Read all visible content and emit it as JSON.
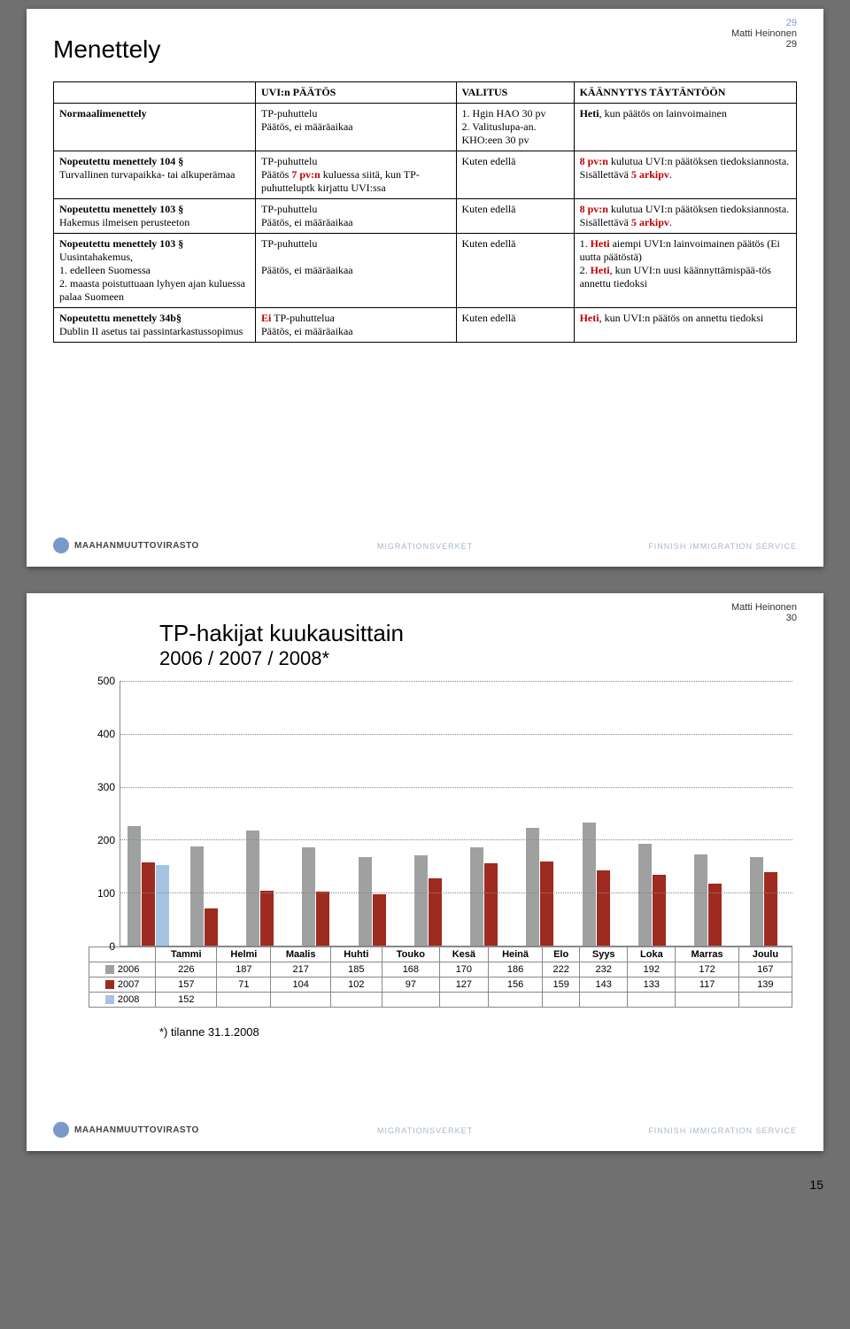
{
  "slide1": {
    "pageNumber": "29",
    "author": "Matti Heinonen",
    "authorPage": "29",
    "title": "Menettely",
    "table": {
      "headers": [
        "",
        "UVI:n PÄÄTÖS",
        "VALITUS",
        "KÄÄNNYTYS TÄYTÄNTÖÖN"
      ],
      "rows": [
        {
          "c0_html": "<span class='bold'>Normaalimenettely</span>",
          "c1_html": "TP-puhuttelu<br>Päätös, ei määräaikaa",
          "c2_html": "1. Hgin HAO 30 pv<br>2. Valituslupa-an. KHO:een 30 pv",
          "c3_html": "<span class='bold'>Heti</span>, kun päätös on lainvoimainen"
        },
        {
          "c0_html": "<span class='bold'>Nopeutettu menettely 104 §</span><br>Turvallinen turvapaikka- tai alkuperämaa",
          "c1_html": "TP-puhuttelu<br>Päätös <span class='red bold'>7 pv:n</span> kuluessa siitä, kun TP-puhutteluptk kirjattu UVI:ssa",
          "c2_html": "Kuten edellä",
          "c3_html": "<span class='red bold'>8 pv:n</span> kulutua UVI:n päätöksen tiedoksiannosta. Sisällettävä <span class='red bold'>5 arkipv</span>."
        },
        {
          "c0_html": "<span class='bold'>Nopeutettu menettely 103 §</span><br>Hakemus ilmeisen perusteeton",
          "c1_html": "TP-puhuttelu<br>Päätös, ei määräaikaa",
          "c2_html": "Kuten edellä",
          "c3_html": "<span class='red bold'>8 pv:n</span> kulutua UVI:n päätöksen tiedoksiannosta. Sisällettävä <span class='red bold'>5 arkipv</span>."
        },
        {
          "c0_html": "<span class='bold'>Nopeutettu menettely 103 §</span><br>Uusintahakemus,<br>1. edelleen Suomessa<br>2. maasta poistuttuaan lyhyen ajan kuluessa palaa Suomeen",
          "c1_html": "TP-puhuttelu<br><br>Päätös, ei määräaikaa",
          "c2_html": "Kuten edellä",
          "c3_html": "1. <span class='red bold'>Heti</span> aiempi UVI:n lainvoimainen päätös (Ei uutta päätöstä)<br>2. <span class='red bold'>Heti</span>, kun UVI:n uusi käännyttämispää-tös annettu tiedoksi"
        },
        {
          "c0_html": "<span class='bold'>Nopeutettu menettely 34b§</span><br>Dublin II asetus tai passintarkastussopimus",
          "c1_html": "<span class='red bold'>Ei</span> TP-puhuttelua<br>Päätös, ei määräaikaa",
          "c2_html": "Kuten edellä",
          "c3_html": "<span class='red bold'>Heti</span>, kun UVI:n päätös on annettu tiedoksi"
        }
      ]
    }
  },
  "slide2": {
    "pageNumber": "30",
    "author": "Matti Heinonen",
    "authorPage": "30",
    "title": "TP-hakijat kuukausittain",
    "subtitle": "2006 / 2007 / 2008*",
    "note": "*) tilanne 31.1.2008",
    "chart": {
      "ymax": 500,
      "ystep": 100,
      "months": [
        "Tammi",
        "Helmi",
        "Maalis",
        "Huhti",
        "Touko",
        "Kesä",
        "Heinä",
        "Elo",
        "Syys",
        "Loka",
        "Marras",
        "Joulu"
      ],
      "seriesLabels": {
        "s2006": "2006",
        "s2007": "2007",
        "s2008": "2008"
      },
      "seriesColors": {
        "s2006": "#9fa1a1",
        "s2007": "#9f2a1f",
        "s2008": "#a6c3e4"
      },
      "data": {
        "2006": [
          226,
          187,
          217,
          185,
          168,
          170,
          186,
          222,
          232,
          192,
          172,
          167
        ],
        "2007": [
          157,
          71,
          104,
          102,
          97,
          127,
          156,
          159,
          143,
          133,
          117,
          139
        ],
        "2008": [
          152,
          null,
          null,
          null,
          null,
          null,
          null,
          null,
          null,
          null,
          null,
          null
        ]
      }
    }
  },
  "footer": {
    "left": "MAAHANMUUTTOVIRASTO",
    "center": "MIGRATIONSVERKET",
    "right": "FINNISH IMMIGRATION SERVICE"
  },
  "pageFooter": "15"
}
